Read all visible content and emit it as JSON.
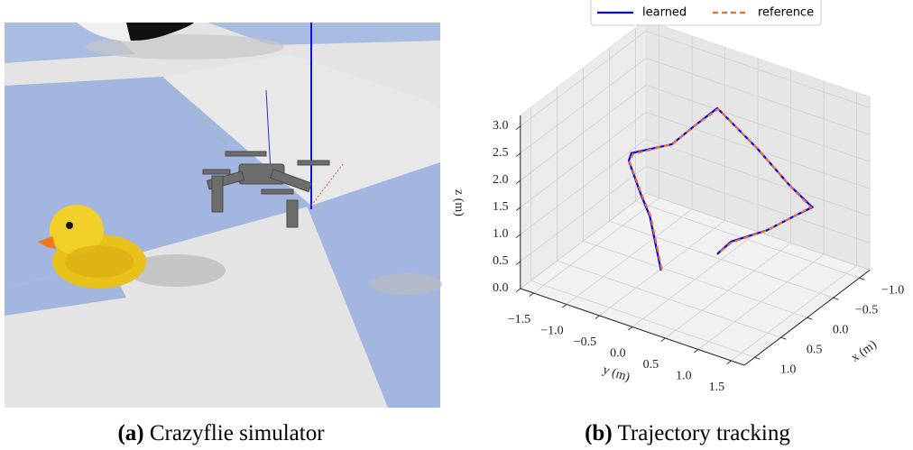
{
  "figures": [
    {
      "label": "(a)",
      "caption": "Crazyflie simulator"
    },
    {
      "label": "(b)",
      "caption": "Trajectory tracking"
    }
  ],
  "chart_data": {
    "type": "line3d",
    "xlabel": "x (m)",
    "ylabel": "y (m)",
    "zlabel": "z (m)",
    "xlim": [
      -1.2,
      1.2
    ],
    "ylim": [
      -1.7,
      1.7
    ],
    "zlim": [
      0,
      3.2
    ],
    "xticks": [
      {
        "value": -1.0,
        "label": "−1.0"
      },
      {
        "value": -0.5,
        "label": "−0.5"
      },
      {
        "value": 0,
        "label": "0.0"
      },
      {
        "value": 0.5,
        "label": "0.5"
      },
      {
        "value": 1.0,
        "label": "1.0"
      }
    ],
    "yticks": [
      {
        "value": -1.5,
        "label": "−1.5"
      },
      {
        "value": -1.0,
        "label": "−1.0"
      },
      {
        "value": -0.5,
        "label": "−0.5"
      },
      {
        "value": 0,
        "label": "0.0"
      },
      {
        "value": 0.5,
        "label": "0.5"
      },
      {
        "value": 1.0,
        "label": "1.0"
      },
      {
        "value": 1.5,
        "label": "1.5"
      }
    ],
    "zticks": [
      {
        "value": 0,
        "label": "0.0"
      },
      {
        "value": 0.5,
        "label": "0.5"
      },
      {
        "value": 1.0,
        "label": "1.0"
      },
      {
        "value": 1.5,
        "label": "1.5"
      },
      {
        "value": 2.0,
        "label": "2.0"
      },
      {
        "value": 2.5,
        "label": "2.5"
      },
      {
        "value": 3.0,
        "label": "3.0"
      }
    ],
    "grid": true,
    "legend": "top",
    "series": [
      {
        "name": "learned",
        "color": "#0000ff",
        "dash": false,
        "x": [
          0.5,
          0.5,
          0.5,
          0.6,
          0.5,
          0.0,
          -0.3,
          -0.5,
          -0.5,
          -0.4,
          -0.3,
          -0.2,
          0.0,
          0.3,
          0.6,
          0.7
        ],
        "y": [
          -0.12,
          -0.29,
          -0.43,
          -0.53,
          -0.57,
          -0.35,
          -0.25,
          -0.06,
          0.08,
          0.63,
          1.19,
          1.62,
          1.5,
          1.33,
          1.02,
          0.89
        ],
        "z": [
          0.48,
          1.41,
          1.77,
          2.41,
          2.46,
          2.35,
          2.51,
          2.77,
          2.66,
          2.38,
          2.02,
          1.86,
          1.79,
          1.68,
          1.56,
          1.35
        ]
      },
      {
        "name": "reference",
        "color": "#e8702a",
        "dash": true,
        "x": [
          0.5,
          0.5,
          0.5,
          0.6,
          0.5,
          0.0,
          -0.3,
          -0.5,
          -0.5,
          -0.4,
          -0.3,
          -0.2,
          0.0,
          0.3,
          0.6,
          0.7
        ],
        "y": [
          -0.11,
          -0.28,
          -0.42,
          -0.52,
          -0.55,
          -0.34,
          -0.24,
          -0.05,
          0.09,
          0.64,
          1.2,
          1.6,
          1.49,
          1.32,
          1.03,
          0.9
        ],
        "z": [
          0.5,
          1.42,
          1.78,
          2.4,
          2.45,
          2.36,
          2.52,
          2.76,
          2.65,
          2.37,
          2.01,
          1.85,
          1.78,
          1.67,
          1.55,
          1.36
        ]
      }
    ]
  }
}
